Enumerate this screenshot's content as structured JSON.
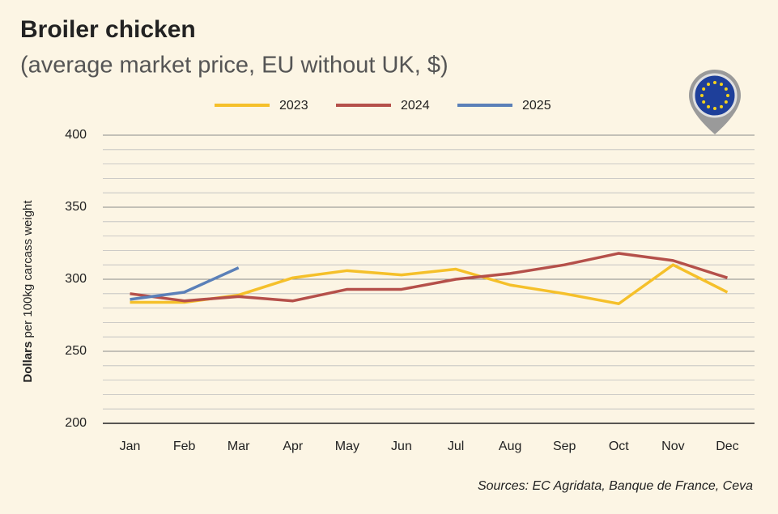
{
  "chart_data": {
    "type": "line",
    "title": "Broiler chicken",
    "subtitle": "(average market price, EU without UK, $)",
    "ylabel_bold": "Dollars",
    "ylabel": "per 100kg carcass weight",
    "source": "Sources: EC Agridata, Banque de France, Ceva",
    "categories": [
      "Jan",
      "Feb",
      "Mar",
      "Apr",
      "May",
      "Jun",
      "Jul",
      "Aug",
      "Sep",
      "Oct",
      "Nov",
      "Dec"
    ],
    "series": [
      {
        "name": "2023",
        "color": "#f5c02a",
        "values": [
          284,
          284,
          289,
          301,
          306,
          303,
          307,
          296,
          290,
          283,
          310,
          291
        ]
      },
      {
        "name": "2024",
        "color": "#b5504a",
        "values": [
          290,
          285,
          288,
          285,
          293,
          293,
          300,
          304,
          310,
          318,
          313,
          301
        ]
      },
      {
        "name": "2025",
        "color": "#5b80b8",
        "values": [
          286,
          291,
          308,
          null,
          null,
          null,
          null,
          null,
          null,
          null,
          null,
          null
        ]
      }
    ],
    "ylim": [
      200,
      400
    ],
    "yticks": [
      200,
      250,
      300,
      350,
      400
    ],
    "minor_yticks": [
      210,
      220,
      230,
      240,
      260,
      270,
      280,
      290,
      310,
      320,
      330,
      340,
      360,
      370,
      380,
      390
    ],
    "grid": true,
    "legend": "top"
  }
}
